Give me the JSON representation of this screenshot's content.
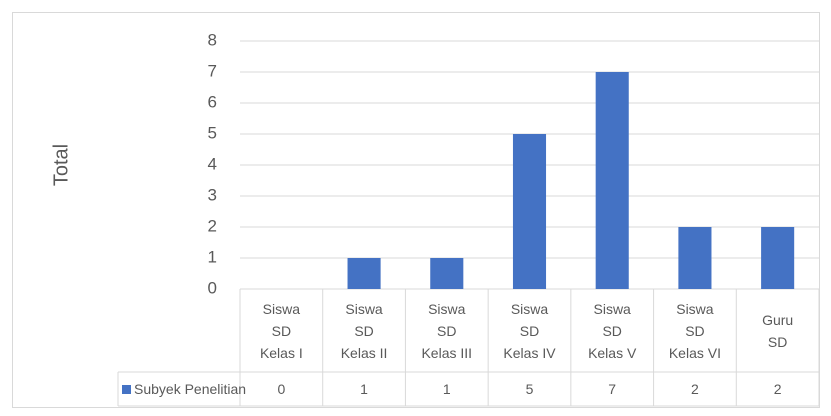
{
  "chart_data": {
    "type": "bar",
    "y_label": "Total",
    "categories": [
      "Siswa\nSD\nKelas I",
      "Siswa\nSD\nKelas II",
      "Siswa\nSD\nKelas III",
      "Siswa\nSD\nKelas IV",
      "Siswa\nSD\nKelas V",
      "Siswa\nSD\nKelas VI",
      "Guru\nSD"
    ],
    "series": [
      {
        "name": "Subyek Penelitian",
        "color": "#4472c4",
        "values": [
          0,
          1,
          1,
          5,
          7,
          2,
          2
        ]
      }
    ],
    "ylim": [
      0,
      8
    ],
    "yticks": [
      0,
      1,
      2,
      3,
      4,
      5,
      6,
      7,
      8
    ],
    "grid": true,
    "data_table": true
  }
}
